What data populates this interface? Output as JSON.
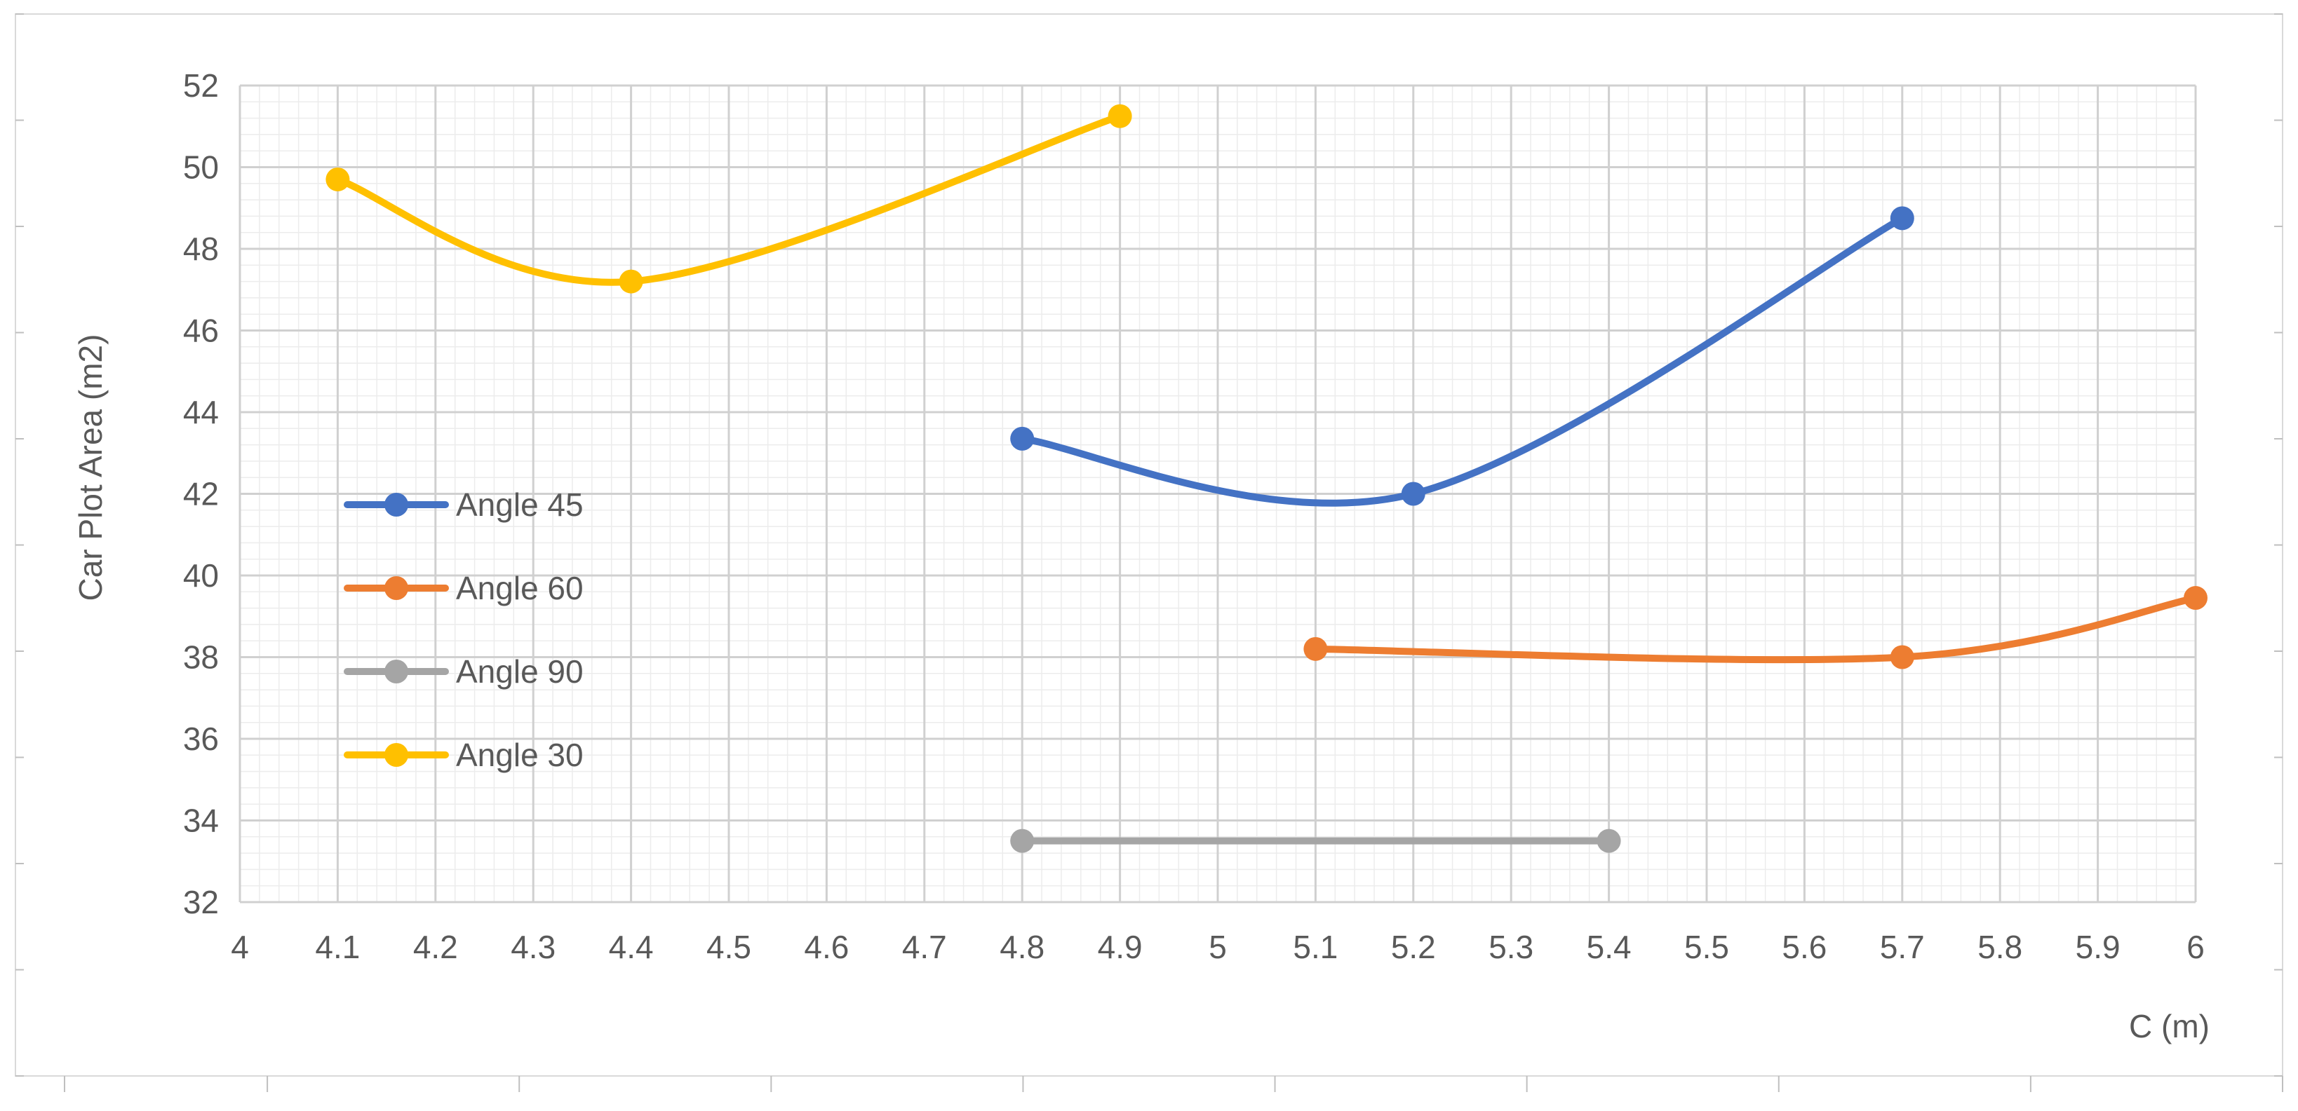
{
  "chart_data": {
    "type": "line",
    "title": "",
    "xlabel": "C (m)",
    "ylabel": "Car Plot Area (m2)",
    "xlim": [
      4,
      6
    ],
    "ylim": [
      32,
      52
    ],
    "x_major_step": 0.1,
    "y_major_step": 2,
    "x_tick_labels": [
      "4",
      "4.1",
      "4.2",
      "4.3",
      "4.4",
      "4.5",
      "4.6",
      "4.7",
      "4.8",
      "4.9",
      "5",
      "5.1",
      "5.2",
      "5.3",
      "5.4",
      "5.5",
      "5.6",
      "5.7",
      "5.8",
      "5.9",
      "6"
    ],
    "y_tick_labels": [
      "32",
      "34",
      "36",
      "38",
      "40",
      "42",
      "44",
      "46",
      "48",
      "50",
      "52"
    ],
    "grid": "major and minor",
    "smoothed": true,
    "legend_position": "left, inside plot",
    "series": [
      {
        "name": "Angle 45",
        "color": "#4472C4",
        "x": [
          4.8,
          5.2,
          5.7
        ],
        "y": [
          43.35,
          42.0,
          48.75
        ]
      },
      {
        "name": "Angle 60",
        "color": "#ED7D31",
        "x": [
          5.1,
          5.7,
          6.0
        ],
        "y": [
          38.2,
          38.0,
          39.45
        ]
      },
      {
        "name": "Angle 90",
        "color": "#A5A5A5",
        "x": [
          4.8,
          5.4
        ],
        "y": [
          33.5,
          33.5
        ]
      },
      {
        "name": "Angle 30",
        "color": "#FFC000",
        "x": [
          4.1,
          4.4,
          4.9
        ],
        "y": [
          49.7,
          47.2,
          51.25
        ]
      }
    ]
  }
}
